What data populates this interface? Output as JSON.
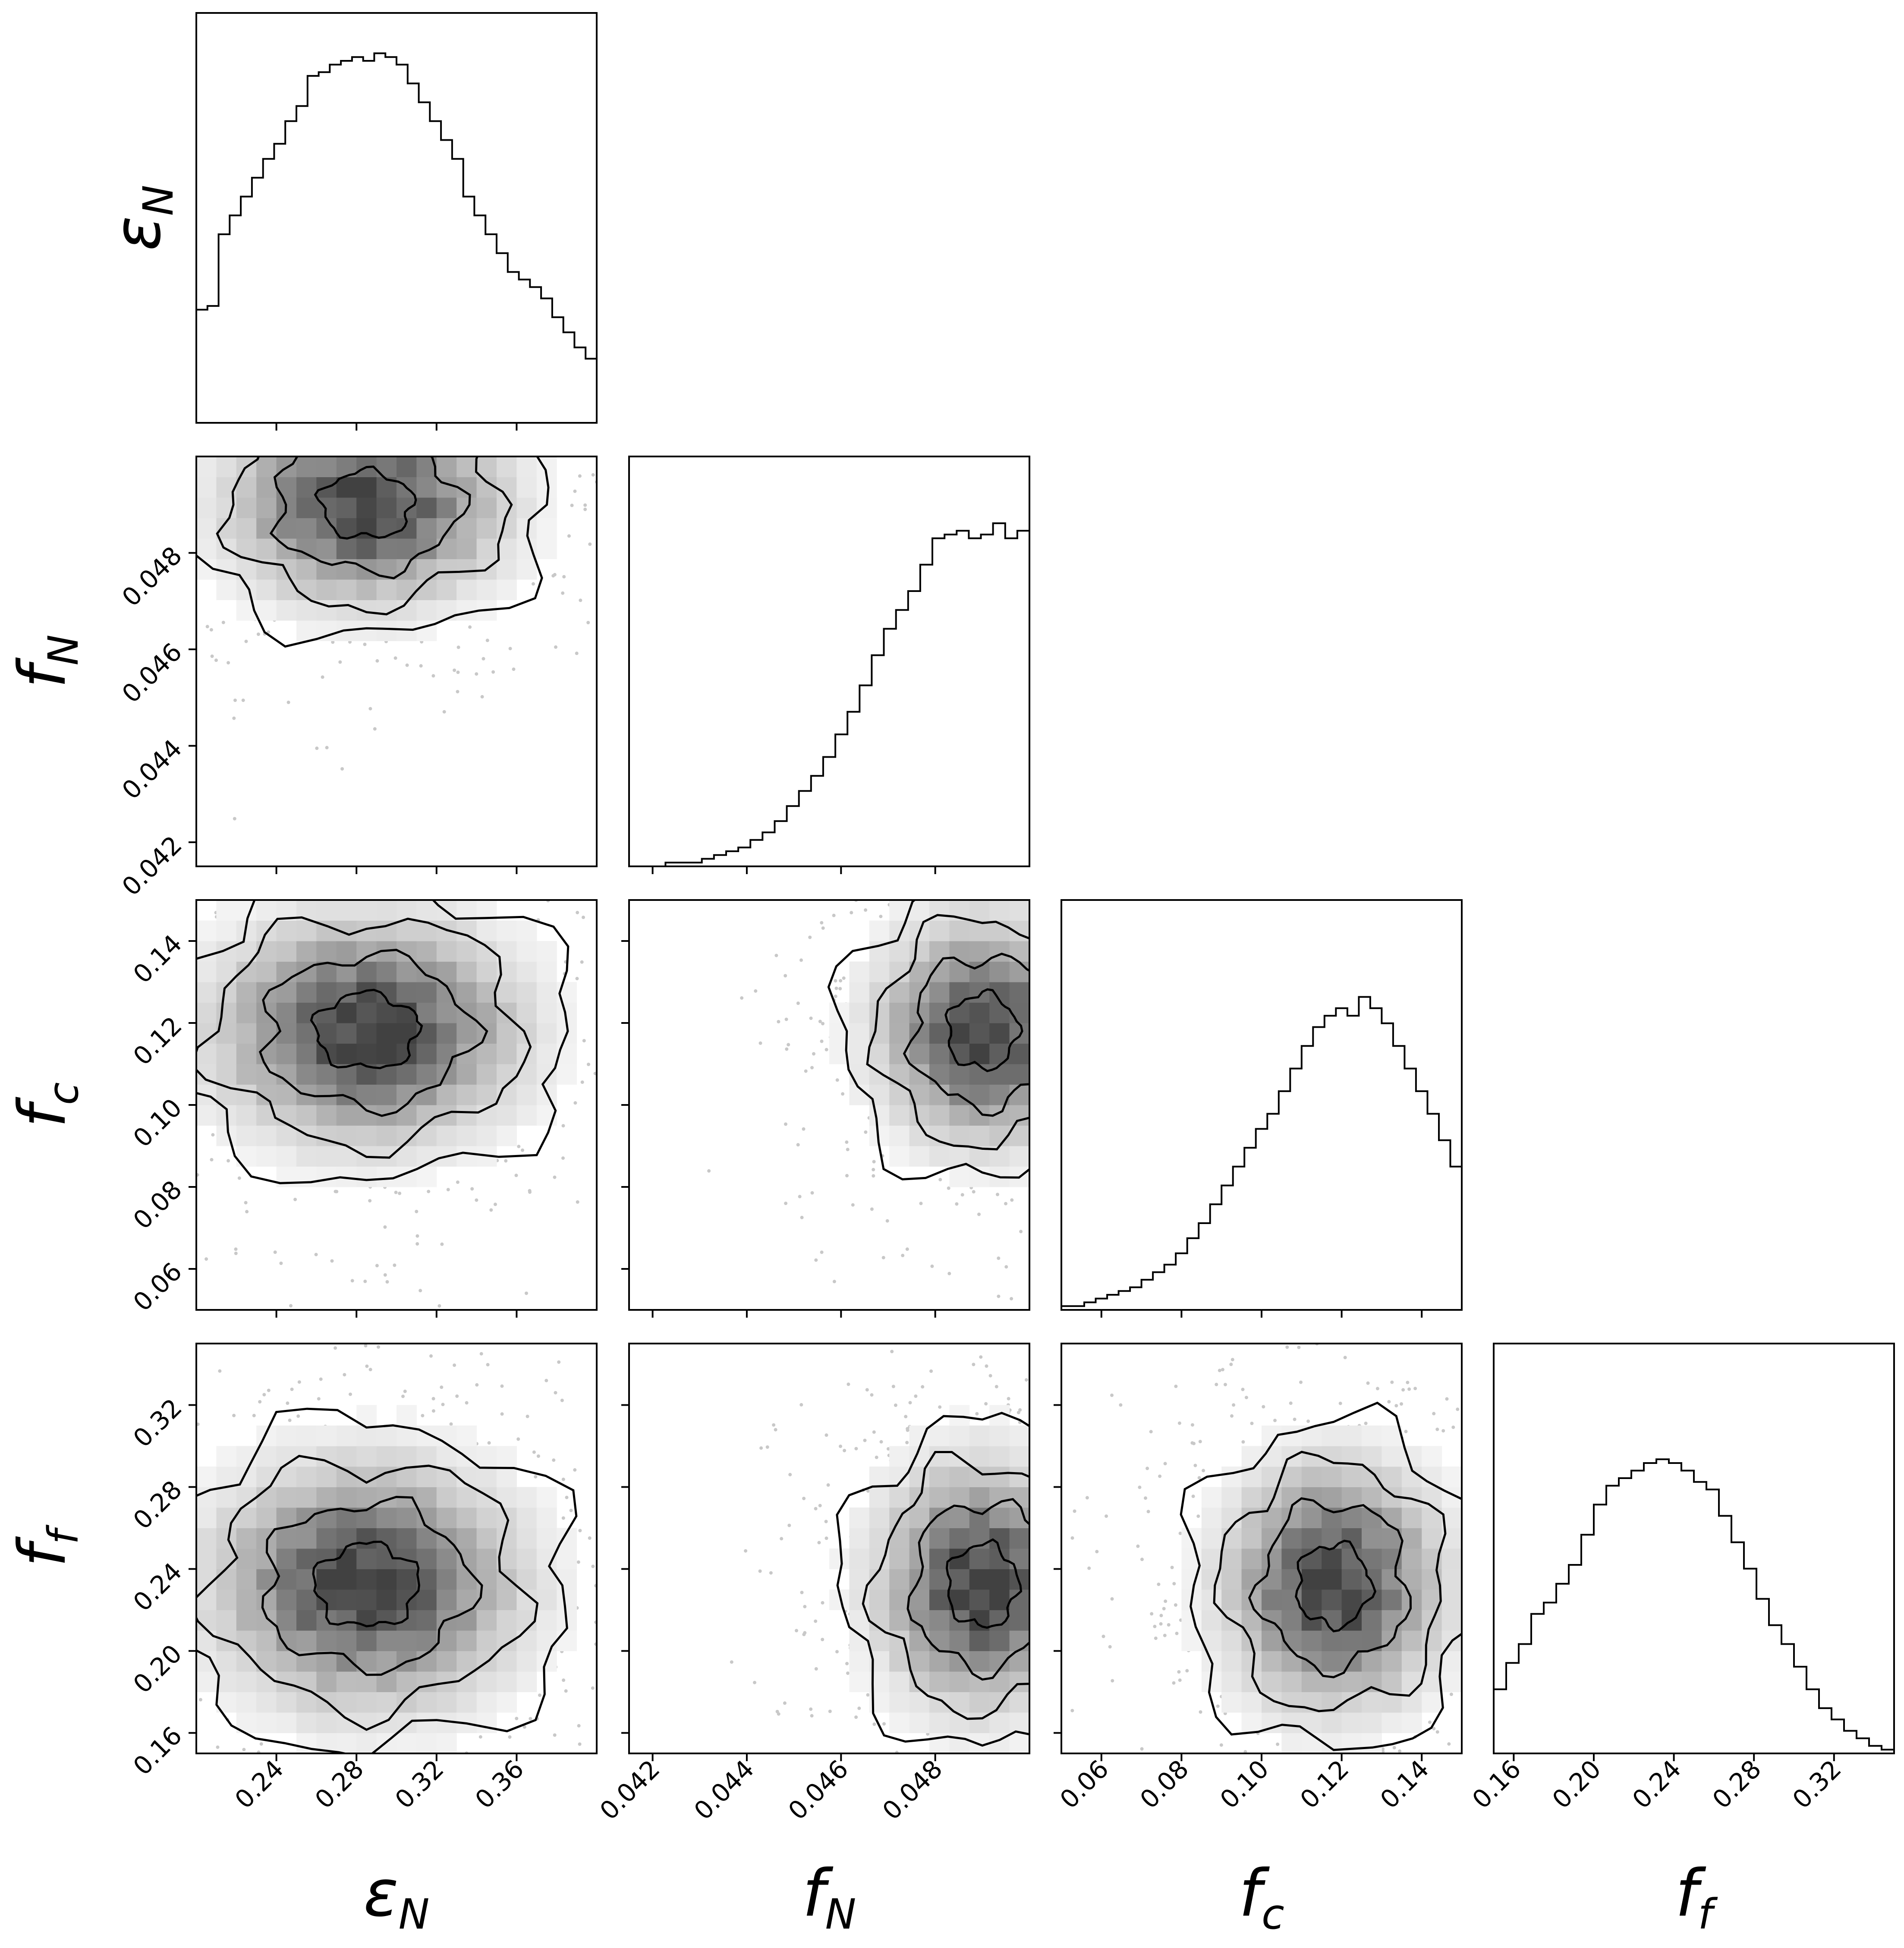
{
  "chart_data": {
    "type": "corner",
    "title": "",
    "parameters": [
      {
        "key": "eps_N",
        "symbol": "ε",
        "sub": "N",
        "range": [
          0.2,
          0.4
        ],
        "ticks": [
          0.24,
          0.28,
          0.32,
          0.36
        ],
        "tick_labels": [
          "0.24",
          "0.28",
          "0.32",
          "0.36"
        ]
      },
      {
        "key": "f_N",
        "symbol": "f",
        "sub": "N",
        "range": [
          0.0415,
          0.05
        ],
        "ticks": [
          0.042,
          0.044,
          0.046,
          0.048
        ],
        "tick_labels": [
          "0.042",
          "0.044",
          "0.046",
          "0.048"
        ]
      },
      {
        "key": "f_c",
        "symbol": "f",
        "sub": "c",
        "range": [
          0.05,
          0.15
        ],
        "ticks": [
          0.06,
          0.08,
          0.1,
          0.12,
          0.14
        ],
        "tick_labels": [
          "0.06",
          "0.08",
          "0.10",
          "0.12",
          "0.14"
        ]
      },
      {
        "key": "f_f",
        "symbol": "f",
        "sub": "f",
        "range": [
          0.15,
          0.35
        ],
        "ticks": [
          0.16,
          0.2,
          0.24,
          0.28,
          0.32
        ],
        "tick_labels": [
          "0.16",
          "0.20",
          "0.24",
          "0.28",
          "0.32"
        ]
      }
    ],
    "histograms": [
      {
        "param": "eps_N",
        "values": [
          0.3,
          0.31,
          0.5,
          0.55,
          0.6,
          0.65,
          0.7,
          0.74,
          0.8,
          0.84,
          0.92,
          0.93,
          0.95,
          0.96,
          0.97,
          0.96,
          0.98,
          0.97,
          0.95,
          0.9,
          0.85,
          0.8,
          0.75,
          0.7,
          0.6,
          0.55,
          0.5,
          0.45,
          0.4,
          0.38,
          0.36,
          0.33,
          0.28,
          0.24,
          0.2,
          0.17
        ]
      },
      {
        "param": "f_N",
        "values": [
          0.0,
          0.0,
          0.0,
          0.01,
          0.01,
          0.01,
          0.02,
          0.03,
          0.04,
          0.05,
          0.07,
          0.09,
          0.12,
          0.16,
          0.2,
          0.24,
          0.29,
          0.35,
          0.41,
          0.48,
          0.56,
          0.63,
          0.68,
          0.73,
          0.8,
          0.87,
          0.88,
          0.89,
          0.87,
          0.88,
          0.91,
          0.87,
          0.89
        ]
      },
      {
        "param": "f_c",
        "values": [
          0.01,
          0.01,
          0.02,
          0.03,
          0.04,
          0.05,
          0.06,
          0.08,
          0.1,
          0.12,
          0.15,
          0.19,
          0.23,
          0.28,
          0.33,
          0.38,
          0.43,
          0.48,
          0.52,
          0.58,
          0.64,
          0.7,
          0.75,
          0.78,
          0.8,
          0.78,
          0.83,
          0.8,
          0.76,
          0.7,
          0.64,
          0.58,
          0.52,
          0.45,
          0.38
        ]
      },
      {
        "param": "f_f",
        "values": [
          0.17,
          0.24,
          0.29,
          0.37,
          0.4,
          0.45,
          0.5,
          0.58,
          0.66,
          0.71,
          0.73,
          0.75,
          0.77,
          0.78,
          0.77,
          0.75,
          0.72,
          0.7,
          0.63,
          0.56,
          0.49,
          0.41,
          0.34,
          0.29,
          0.23,
          0.17,
          0.12,
          0.09,
          0.06,
          0.04,
          0.02,
          0.01
        ]
      }
    ],
    "pairs": [
      {
        "x": "eps_N",
        "y": "f_N",
        "mean": [
          0.285,
          0.049
        ],
        "sigma": [
          0.04,
          0.0012
        ],
        "clip": "upper-y"
      },
      {
        "x": "eps_N",
        "y": "f_c",
        "mean": [
          0.285,
          0.118
        ],
        "sigma": [
          0.045,
          0.016
        ]
      },
      {
        "x": "f_N",
        "y": "f_c",
        "mean": [
          0.049,
          0.118
        ],
        "sigma": [
          0.0013,
          0.016
        ],
        "clip": "upper-x"
      },
      {
        "x": "eps_N",
        "y": "f_f",
        "mean": [
          0.285,
          0.232
        ],
        "sigma": [
          0.045,
          0.035
        ]
      },
      {
        "x": "f_N",
        "y": "f_f",
        "mean": [
          0.049,
          0.232
        ],
        "sigma": [
          0.0013,
          0.035
        ],
        "clip": "upper-x"
      },
      {
        "x": "f_c",
        "y": "f_f",
        "mean": [
          0.118,
          0.232
        ],
        "sigma": [
          0.016,
          0.035
        ]
      }
    ],
    "contour_levels_sigma": [
      0.5,
      1.0,
      1.5,
      2.0
    ],
    "legend": "none",
    "grid": false
  }
}
